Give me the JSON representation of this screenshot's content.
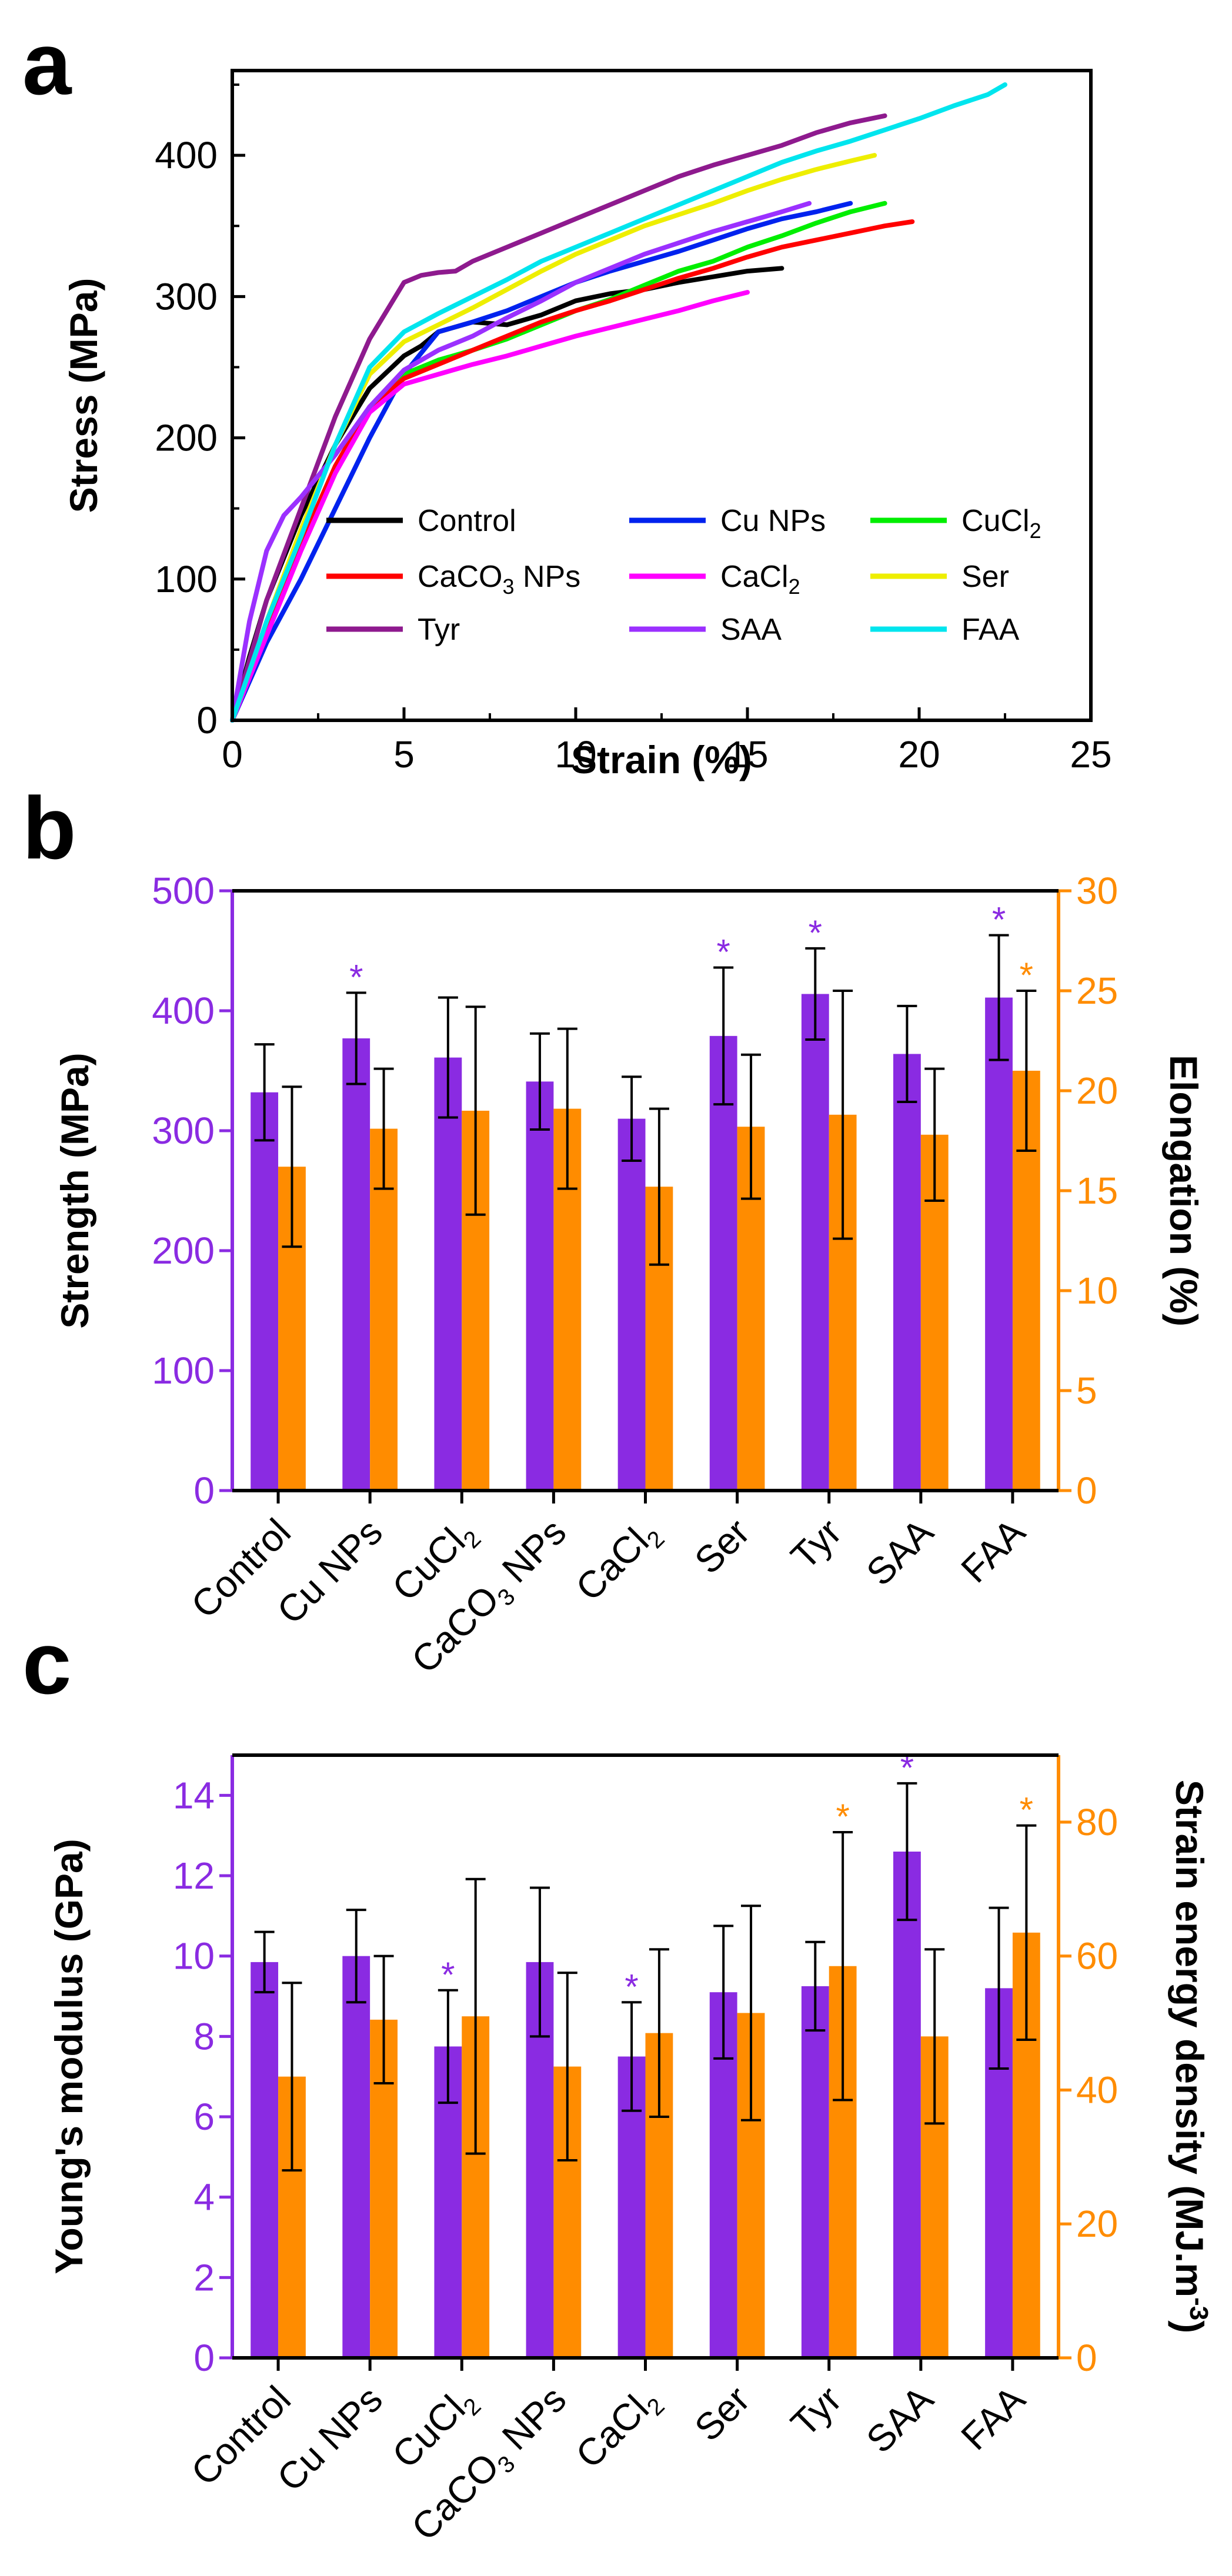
{
  "panels": {
    "a": "a",
    "b": "b",
    "c": "c"
  },
  "colors": {
    "purple": "#8a2be2",
    "orange": "#ff8c00",
    "axis": "#000000"
  },
  "chart_data": [
    {
      "id": "a",
      "type": "line",
      "xlabel": "Strain (%)",
      "ylabel": "Stress (MPa)",
      "xlim": [
        0,
        25
      ],
      "ylim": [
        0,
        460
      ],
      "xticks": [
        0,
        5,
        10,
        15,
        20,
        25
      ],
      "yticks": [
        0,
        100,
        200,
        300,
        400
      ],
      "legend_position": "lower-right",
      "series": [
        {
          "name": "Control",
          "label_html": "Control",
          "color": "#000000",
          "points": [
            [
              0,
              0
            ],
            [
              0.5,
              45
            ],
            [
              1,
              85
            ],
            [
              2,
              145
            ],
            [
              3,
              195
            ],
            [
              4,
              235
            ],
            [
              5,
              258
            ],
            [
              5.5,
              265
            ],
            [
              6,
              275
            ],
            [
              7,
              282
            ],
            [
              8,
              280
            ],
            [
              9,
              287
            ],
            [
              10,
              297
            ],
            [
              11,
              302
            ],
            [
              12,
              305
            ],
            [
              13,
              310
            ],
            [
              14,
              314
            ],
            [
              15,
              318
            ],
            [
              16,
              320
            ]
          ]
        },
        {
          "name": "Cu NPs",
          "label_html": "Cu NPs",
          "color": "#0022ee",
          "points": [
            [
              0,
              0
            ],
            [
              1,
              55
            ],
            [
              2,
              100
            ],
            [
              3,
              150
            ],
            [
              4,
              200
            ],
            [
              5,
              245
            ],
            [
              6,
              275
            ],
            [
              7,
              282
            ],
            [
              8,
              290
            ],
            [
              9,
              300
            ],
            [
              10,
              310
            ],
            [
              11,
              318
            ],
            [
              12,
              325
            ],
            [
              13,
              332
            ],
            [
              14,
              340
            ],
            [
              15,
              348
            ],
            [
              16,
              355
            ],
            [
              17,
              360
            ],
            [
              18,
              366
            ]
          ]
        },
        {
          "name": "CuCl2",
          "label_html": "CuCl<tspan font-size='36' dy='12'>2</tspan>",
          "color": "#00ee00",
          "points": [
            [
              0,
              0
            ],
            [
              1,
              65
            ],
            [
              2,
              125
            ],
            [
              3,
              180
            ],
            [
              4,
              222
            ],
            [
              5,
              245
            ],
            [
              6,
              255
            ],
            [
              7,
              262
            ],
            [
              8,
              270
            ],
            [
              9,
              280
            ],
            [
              10,
              290
            ],
            [
              11,
              298
            ],
            [
              12,
              308
            ],
            [
              13,
              318
            ],
            [
              14,
              325
            ],
            [
              15,
              335
            ],
            [
              16,
              343
            ],
            [
              17,
              352
            ],
            [
              18,
              360
            ],
            [
              19,
              366
            ]
          ]
        },
        {
          "name": "CaCO3 NPs",
          "label_html": "CaCO<tspan font-size='36' dy='12'>3</tspan><tspan dy='-12'> NPs</tspan>",
          "color": "#ff0000",
          "points": [
            [
              0,
              0
            ],
            [
              1,
              65
            ],
            [
              2,
              125
            ],
            [
              3,
              180
            ],
            [
              4,
              222
            ],
            [
              5,
              242
            ],
            [
              6,
              252
            ],
            [
              7,
              262
            ],
            [
              8,
              272
            ],
            [
              9,
              282
            ],
            [
              10,
              290
            ],
            [
              11,
              297
            ],
            [
              12,
              305
            ],
            [
              13,
              313
            ],
            [
              14,
              320
            ],
            [
              15,
              328
            ],
            [
              16,
              335
            ],
            [
              17,
              340
            ],
            [
              18,
              345
            ],
            [
              19,
              350
            ],
            [
              19.8,
              353
            ]
          ]
        },
        {
          "name": "CaCl2",
          "label_html": "CaCl<tspan font-size='36' dy='12'>2</tspan>",
          "color": "#ff00ff",
          "points": [
            [
              0,
              0
            ],
            [
              1,
              60
            ],
            [
              2,
              120
            ],
            [
              3,
              175
            ],
            [
              4,
              218
            ],
            [
              5,
              238
            ],
            [
              6,
              245
            ],
            [
              7,
              252
            ],
            [
              8,
              258
            ],
            [
              9,
              265
            ],
            [
              10,
              272
            ],
            [
              11,
              278
            ],
            [
              12,
              284
            ],
            [
              13,
              290
            ],
            [
              14,
              297
            ],
            [
              15,
              303
            ]
          ]
        },
        {
          "name": "Ser",
          "label_html": "Ser",
          "color": "#eeee00",
          "points": [
            [
              0,
              0
            ],
            [
              1,
              70
            ],
            [
              2,
              135
            ],
            [
              3,
              195
            ],
            [
              4,
              245
            ],
            [
              5,
              268
            ],
            [
              6,
              280
            ],
            [
              7,
              292
            ],
            [
              8,
              305
            ],
            [
              9,
              318
            ],
            [
              10,
              330
            ],
            [
              11,
              340
            ],
            [
              12,
              350
            ],
            [
              13,
              358
            ],
            [
              14,
              366
            ],
            [
              15,
              375
            ],
            [
              16,
              383
            ],
            [
              17,
              390
            ],
            [
              18,
              396
            ],
            [
              18.7,
              400
            ]
          ]
        },
        {
          "name": "Tyr",
          "label_html": "Tyr",
          "color": "#8e1a8e",
          "points": [
            [
              0,
              0
            ],
            [
              1,
              85
            ],
            [
              2,
              150
            ],
            [
              3,
              215
            ],
            [
              4,
              270
            ],
            [
              5,
              310
            ],
            [
              5.5,
              315
            ],
            [
              6,
              317
            ],
            [
              6.5,
              318
            ],
            [
              7,
              325
            ],
            [
              8,
              335
            ],
            [
              9,
              345
            ],
            [
              10,
              355
            ],
            [
              11,
              365
            ],
            [
              12,
              375
            ],
            [
              13,
              385
            ],
            [
              14,
              393
            ],
            [
              15,
              400
            ],
            [
              16,
              407
            ],
            [
              17,
              416
            ],
            [
              18,
              423
            ],
            [
              19,
              428
            ]
          ]
        },
        {
          "name": "SAA",
          "label_html": "SAA",
          "color": "#9b30ff",
          "points": [
            [
              0,
              0
            ],
            [
              0.5,
              70
            ],
            [
              1,
              120
            ],
            [
              1.5,
              145
            ],
            [
              2,
              158
            ],
            [
              3,
              188
            ],
            [
              4,
              222
            ],
            [
              5,
              248
            ],
            [
              6,
              262
            ],
            [
              7,
              272
            ],
            [
              8,
              285
            ],
            [
              9,
              297
            ],
            [
              10,
              310
            ],
            [
              11,
              320
            ],
            [
              12,
              330
            ],
            [
              13,
              338
            ],
            [
              14,
              346
            ],
            [
              15,
              353
            ],
            [
              16,
              360
            ],
            [
              16.8,
              366
            ]
          ]
        },
        {
          "name": "FAA",
          "label_html": "FAA",
          "color": "#00e5ee",
          "points": [
            [
              0,
              0
            ],
            [
              1,
              70
            ],
            [
              2,
              130
            ],
            [
              3,
              195
            ],
            [
              4,
              250
            ],
            [
              5,
              275
            ],
            [
              6,
              288
            ],
            [
              7,
              300
            ],
            [
              8,
              312
            ],
            [
              9,
              325
            ],
            [
              10,
              335
            ],
            [
              11,
              345
            ],
            [
              12,
              355
            ],
            [
              13,
              365
            ],
            [
              14,
              375
            ],
            [
              15,
              385
            ],
            [
              16,
              395
            ],
            [
              17,
              403
            ],
            [
              18,
              410
            ],
            [
              19,
              418
            ],
            [
              20,
              426
            ],
            [
              21,
              435
            ],
            [
              22,
              443
            ],
            [
              22.5,
              450
            ]
          ]
        }
      ]
    },
    {
      "id": "b",
      "type": "bar",
      "ylabel_left": "Strength (MPa)",
      "ylabel_right": "Elongation (%)",
      "ylim_left": [
        0,
        500
      ],
      "ylim_right": [
        0,
        30
      ],
      "yticks_left": [
        0,
        100,
        200,
        300,
        400,
        500
      ],
      "yticks_right": [
        0,
        5,
        10,
        15,
        20,
        25,
        30
      ],
      "categories": [
        "Control",
        "Cu NPs",
        "CuCl2",
        "CaCO3 NPs",
        "CaCl2",
        "Ser",
        "Tyr",
        "SAA",
        "FAA"
      ],
      "category_labels_html": [
        "Control",
        "Cu NPs",
        "CuCl<tspan font-size='40' dy='14'>2</tspan>",
        "CaCO<tspan font-size='40' dy='14'>3</tspan><tspan dy='-14'> NPs</tspan>",
        "CaCl<tspan font-size='40' dy='14'>2</tspan>",
        "Ser",
        "Tyr",
        "SAA",
        "FAA"
      ],
      "series": [
        {
          "name": "Strength",
          "axis": "left",
          "color": "#8a2be2",
          "values": [
            332,
            377,
            361,
            341,
            310,
            379,
            414,
            364,
            411
          ],
          "errors": [
            40,
            38,
            50,
            40,
            35,
            57,
            38,
            40,
            52
          ],
          "significant": [
            false,
            true,
            false,
            false,
            false,
            true,
            true,
            false,
            true
          ]
        },
        {
          "name": "Elongation",
          "axis": "right",
          "color": "#ff8c00",
          "values": [
            16.2,
            18.1,
            19.0,
            19.1,
            15.2,
            18.2,
            18.8,
            17.8,
            21.0
          ],
          "errors": [
            4.0,
            3.0,
            5.2,
            4.0,
            3.9,
            3.6,
            6.2,
            3.3,
            4.0
          ],
          "significant": [
            false,
            false,
            false,
            false,
            false,
            false,
            false,
            false,
            true
          ]
        }
      ]
    },
    {
      "id": "c",
      "type": "bar",
      "ylabel_left": "Young's modulus (GPa)",
      "ylabel_right": "Strain energy density (MJ.m",
      "ylabel_right_sup": "-3",
      "ylabel_right_end": ")",
      "ylim_left": [
        0,
        15
      ],
      "ylim_right": [
        0,
        90
      ],
      "yticks_left": [
        0,
        2,
        4,
        6,
        8,
        10,
        12,
        14
      ],
      "yticks_right": [
        0,
        20,
        40,
        60,
        80
      ],
      "categories": [
        "Control",
        "Cu NPs",
        "CuCl2",
        "CaCO3 NPs",
        "CaCl2",
        "Ser",
        "Tyr",
        "SAA",
        "FAA"
      ],
      "category_labels_html": [
        "Control",
        "Cu NPs",
        "CuCl<tspan font-size='40' dy='14'>2</tspan>",
        "CaCO<tspan font-size='40' dy='14'>3</tspan><tspan dy='-14'> NPs</tspan>",
        "CaCl<tspan font-size='40' dy='14'>2</tspan>",
        "Ser",
        "Tyr",
        "SAA",
        "FAA"
      ],
      "series": [
        {
          "name": "Young's modulus",
          "axis": "left",
          "color": "#8a2be2",
          "values": [
            9.85,
            10.0,
            7.75,
            9.85,
            7.5,
            9.1,
            9.25,
            12.6,
            9.2
          ],
          "errors": [
            0.75,
            1.15,
            1.4,
            1.85,
            1.35,
            1.65,
            1.1,
            1.7,
            2.0
          ],
          "significant": [
            false,
            false,
            true,
            false,
            true,
            false,
            false,
            true,
            false
          ]
        },
        {
          "name": "Strain energy density",
          "axis": "right",
          "color": "#ff8c00",
          "values": [
            42,
            50.5,
            51,
            43.5,
            48.5,
            51.5,
            58.5,
            48,
            63.5
          ],
          "errors": [
            14,
            9.5,
            20.5,
            14,
            12.5,
            16,
            20,
            13,
            16
          ],
          "significant": [
            false,
            false,
            false,
            false,
            false,
            false,
            true,
            false,
            true
          ]
        }
      ]
    }
  ]
}
